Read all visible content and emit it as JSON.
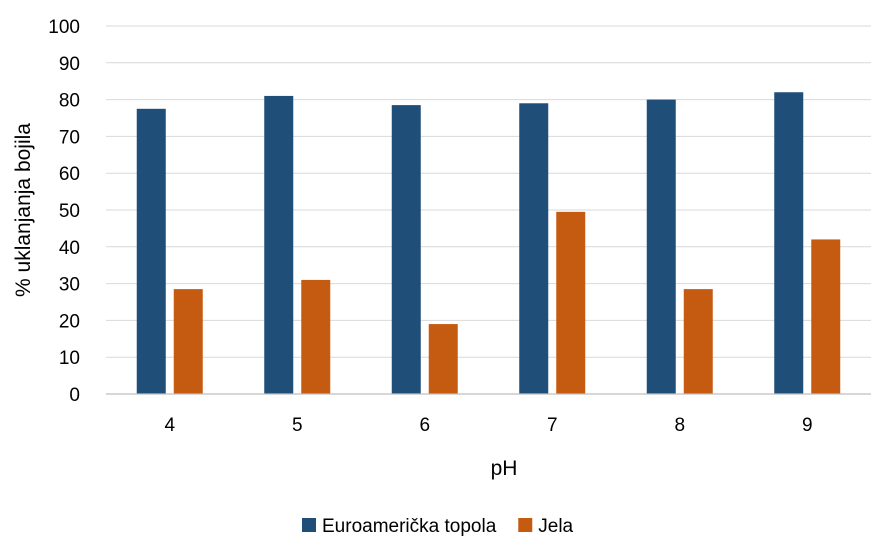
{
  "chart_data": {
    "type": "bar",
    "title": "",
    "xlabel": "pH",
    "ylabel": "% uklanjanja bojila",
    "categories": [
      "4",
      "5",
      "6",
      "7",
      "8",
      "9"
    ],
    "ylim": [
      0,
      100
    ],
    "yticks": [
      "0",
      "10",
      "20",
      "30",
      "40",
      "50",
      "60",
      "70",
      "80",
      "90",
      "100"
    ],
    "grid": true,
    "legend_position": "bottom",
    "series": [
      {
        "name": "Euroamerička topola",
        "color": "#1F4E79",
        "values": [
          77.5,
          81,
          78.5,
          79,
          80,
          82
        ]
      },
      {
        "name": "Jela",
        "color": "#C55A11",
        "values": [
          28.5,
          31,
          19,
          49.5,
          28.5,
          42
        ]
      }
    ]
  }
}
